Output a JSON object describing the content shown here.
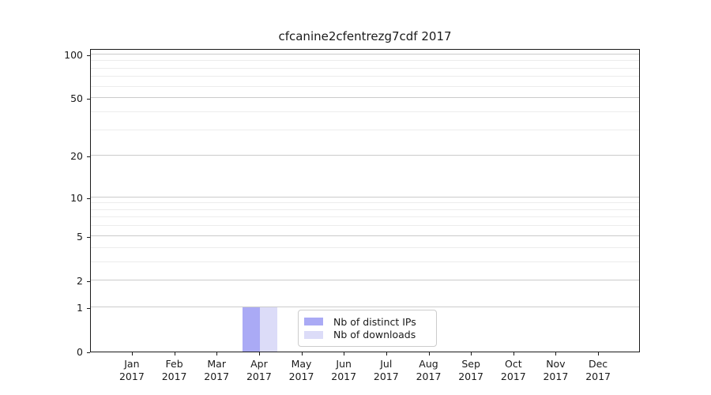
{
  "chart_data": {
    "type": "bar",
    "title": "cfcanine2cfentrezg7cdf 2017",
    "categories": [
      "Jan 2017",
      "Feb 2017",
      "Mar 2017",
      "Apr 2017",
      "May 2017",
      "Jun 2017",
      "Jul 2017",
      "Aug 2017",
      "Sep 2017",
      "Oct 2017",
      "Nov 2017",
      "Dec 2017"
    ],
    "series": [
      {
        "name": "Nb of distinct IPs",
        "color": "#aaaaf5",
        "values": [
          0,
          0,
          0,
          1,
          0,
          0,
          0,
          0,
          0,
          0,
          0,
          0
        ]
      },
      {
        "name": "Nb of downloads",
        "color": "#dcdcf8",
        "values": [
          0,
          0,
          0,
          1,
          0,
          0,
          0,
          0,
          0,
          0,
          0,
          0
        ]
      }
    ],
    "xlabel": "",
    "ylabel": "",
    "yscale": "log1p",
    "yticks": [
      0,
      1,
      2,
      5,
      10,
      20,
      50,
      100
    ],
    "minor_gridlines": [
      3,
      4,
      6,
      7,
      8,
      9,
      30,
      40,
      60,
      70,
      80,
      90
    ],
    "ylim": [
      0,
      110
    ],
    "grid": "horizontal",
    "legend_position": "lower-center-inside",
    "colors": {
      "axis": "#1a1a1a",
      "major_grid": "#cbcbcb",
      "minor_grid": "#ececec",
      "background": "#ffffff"
    }
  }
}
